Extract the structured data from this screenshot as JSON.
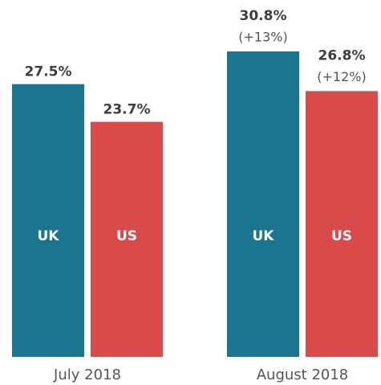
{
  "chart_data": {
    "type": "bar",
    "categories": [
      "July 2018",
      "August 2018"
    ],
    "series": [
      {
        "name": "UK",
        "color": "#1b7590",
        "values": [
          27.5,
          30.8
        ],
        "value_labels": [
          "27.5%",
          "30.8%"
        ],
        "change_labels": [
          null,
          "(+13%)"
        ]
      },
      {
        "name": "US",
        "color": "#d94a4a",
        "values": [
          23.7,
          26.8
        ],
        "value_labels": [
          "23.7%",
          "26.8%"
        ],
        "change_labels": [
          null,
          "(+12%)"
        ]
      }
    ]
  }
}
